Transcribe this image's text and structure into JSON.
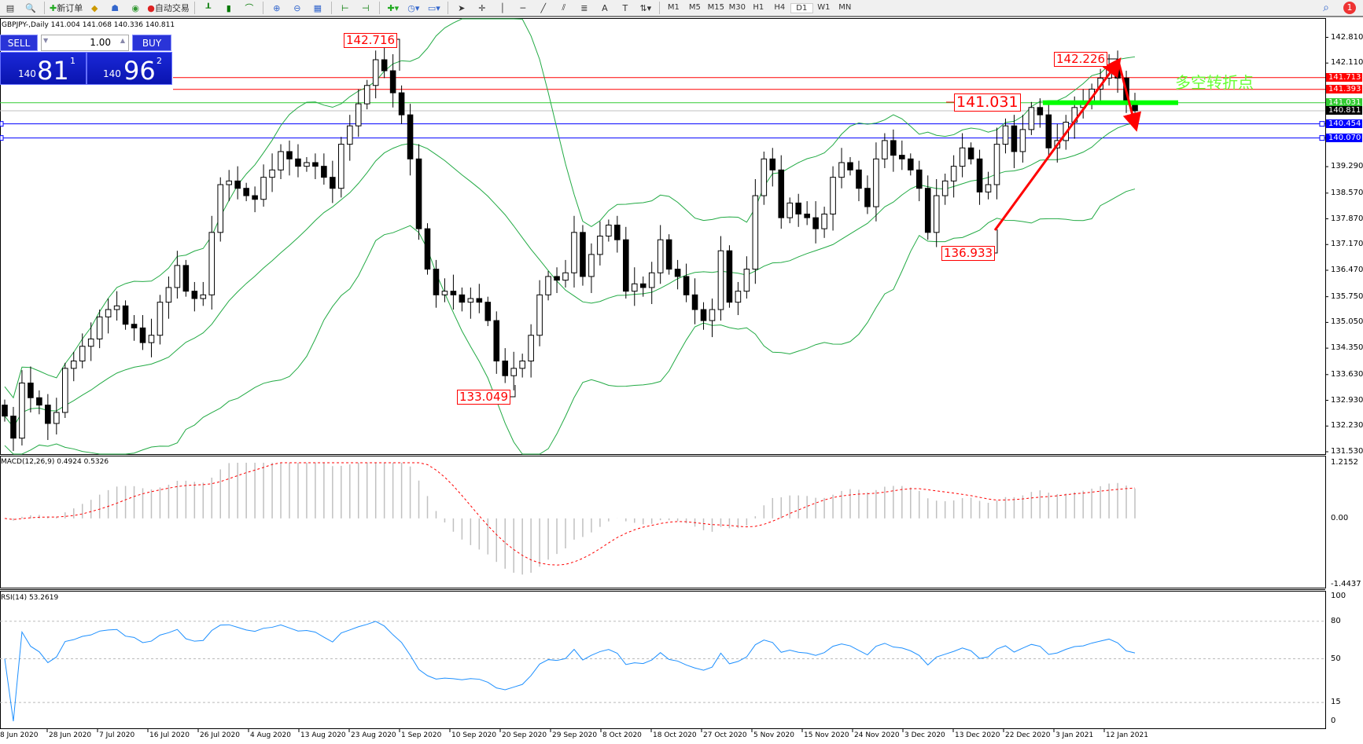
{
  "toolbar": {
    "new_order": "新订单",
    "auto_trading": "自动交易",
    "timeframes": [
      "M1",
      "M5",
      "M15",
      "M30",
      "H1",
      "H4",
      "D1",
      "W1",
      "MN"
    ],
    "active_timeframe": "D1",
    "notification_count": "1"
  },
  "chart": {
    "header": "GBPJPY-,Daily  141.004 141.068 140.336 140.811",
    "annotation_text": "多空转折点",
    "price_labels": [
      "142.716",
      "142.226",
      "141.031",
      "136.933",
      "133.049"
    ],
    "price_ticks": [
      "142.810",
      "142.110",
      "139.290",
      "138.570",
      "137.870",
      "137.170",
      "136.470",
      "135.750",
      "135.050",
      "134.350",
      "133.630",
      "132.930",
      "132.230",
      "131.530"
    ],
    "hlines": [
      {
        "price": "141.713",
        "color": "#ff0000"
      },
      {
        "price": "141.393",
        "color": "#ff0000"
      },
      {
        "price": "141.031",
        "color": "#33cc33"
      },
      {
        "price": "140.811",
        "color": "#000000"
      },
      {
        "price": "140.454",
        "color": "#0000ff"
      },
      {
        "price": "140.070",
        "color": "#0000ff"
      }
    ],
    "dates": [
      "8 Jun 2020",
      "28 Jun 2020",
      "7 Jul 2020",
      "16 Jul 2020",
      "26 Jul 2020",
      "4 Aug 2020",
      "13 Aug 2020",
      "23 Aug 2020",
      "1 Sep 2020",
      "10 Sep 2020",
      "20 Sep 2020",
      "29 Sep 2020",
      "8 Oct 2020",
      "18 Oct 2020",
      "27 Oct 2020",
      "5 Nov 2020",
      "15 Nov 2020",
      "24 Nov 2020",
      "3 Dec 2020",
      "13 Dec 2020",
      "22 Dec 2020",
      "3 Jan 2021",
      "12 Jan 2021"
    ]
  },
  "trade_panel": {
    "sell_label": "SELL",
    "buy_label": "BUY",
    "lot": "1.00",
    "sell_price": {
      "prefix": "140",
      "big": "81",
      "sup": "1"
    },
    "buy_price": {
      "prefix": "140",
      "big": "96",
      "sup": "2"
    }
  },
  "macd": {
    "label": "MACD(12,26,9) 0.4924 0.5326",
    "ticks": [
      "1.2152",
      "0.00",
      "-1.4437"
    ]
  },
  "rsi": {
    "label": "RSI(14) 53.2619",
    "ticks": [
      "100",
      "80",
      "50",
      "15",
      "0"
    ]
  },
  "chart_data": {
    "type": "candlestick",
    "symbol": "GBPJPY-",
    "timeframe": "Daily",
    "ylim": [
      131.53,
      142.81
    ],
    "closes": [
      132.5,
      131.9,
      133.4,
      133.0,
      132.8,
      132.3,
      132.6,
      133.8,
      134.0,
      134.4,
      134.6,
      135.2,
      135.4,
      135.5,
      135.0,
      134.9,
      134.5,
      134.7,
      135.6,
      136.0,
      136.6,
      135.9,
      135.7,
      135.8,
      137.5,
      138.8,
      138.9,
      138.7,
      138.5,
      138.4,
      139.0,
      139.2,
      139.7,
      139.5,
      139.3,
      139.4,
      139.3,
      139.0,
      138.7,
      139.9,
      140.4,
      141.0,
      141.5,
      142.2,
      141.9,
      141.3,
      140.7,
      139.5,
      137.6,
      136.5,
      135.8,
      135.9,
      135.8,
      135.6,
      135.7,
      135.6,
      135.1,
      134.0,
      133.6,
      133.8,
      134.0,
      134.7,
      135.8,
      136.3,
      136.2,
      136.4,
      137.5,
      136.3,
      136.9,
      137.4,
      137.7,
      137.3,
      135.9,
      136.1,
      136.0,
      136.4,
      137.3,
      136.5,
      136.3,
      135.8,
      135.4,
      135.1,
      135.4,
      137.0,
      135.6,
      135.9,
      136.5,
      138.5,
      139.5,
      139.2,
      137.9,
      138.3,
      138.0,
      137.9,
      137.6,
      138.0,
      139.0,
      139.4,
      139.2,
      138.7,
      138.2,
      139.5,
      140.0,
      139.6,
      139.5,
      139.2,
      138.7,
      137.5,
      138.5,
      138.9,
      139.3,
      139.8,
      139.5,
      138.6,
      138.8,
      139.9,
      140.4,
      139.7,
      140.3,
      140.9,
      140.7,
      139.8,
      140.0,
      140.5,
      140.9,
      141.0,
      141.4,
      141.7,
      142.0,
      141.7,
      141.0,
      140.81
    ],
    "indicators": [
      "Bollinger Bands(20,2)",
      "MACD(12,26,9)",
      "RSI(14)"
    ],
    "macd_range": [
      -1.4437,
      1.2152
    ],
    "rsi_levels": [
      80,
      50,
      15
    ]
  },
  "colors": {
    "candle_up": "#ffffff",
    "candle_down": "#000000",
    "bands": "#22aa44",
    "macd_hist": "#c0c0c0",
    "macd_signal": "#ff0000",
    "rsi": "#1e90ff",
    "trend_arrow": "#ff0000",
    "pivot_zone": "#00ff00"
  }
}
